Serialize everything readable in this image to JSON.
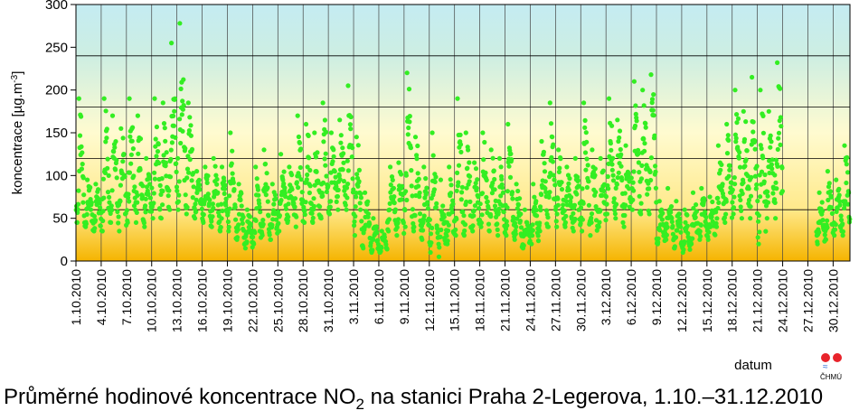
{
  "caption": {
    "prefix": "Průměrné hodinové koncentrace NO",
    "sub": "2",
    "suffix": " na stanici Praha 2-Legerova, 1.10.–31.12.2010"
  },
  "logo": {
    "text": "ČHMÚ"
  },
  "chart_data": {
    "type": "scatter",
    "title": "",
    "ylabel": "koncentrace [µg.m-3]",
    "xlabel": "datum",
    "ylim": [
      0,
      300
    ],
    "yticks": [
      0,
      50,
      100,
      150,
      200,
      250,
      300
    ],
    "gridlines_y": [
      0,
      60,
      120,
      180,
      240,
      300
    ],
    "grid": true,
    "xlim": [
      "1.10.2010",
      "31.12.2010"
    ],
    "xtick_labels": [
      "1.10.2010",
      "4.10.2010",
      "7.10.2010",
      "10.10.2010",
      "13.10.2010",
      "16.10.2010",
      "19.10.2010",
      "22.10.2010",
      "25.10.2010",
      "28.10.2010",
      "31.10.2010",
      "3.11.2010",
      "6.11.2010",
      "9.11.2010",
      "12.11.2010",
      "15.11.2010",
      "18.11.2010",
      "21.11.2010",
      "24.11.2010",
      "27.11.2010",
      "30.11.2010",
      "3.12.2010",
      "6.12.2010",
      "9.12.2010",
      "12.12.2010",
      "15.12.2010",
      "18.12.2010",
      "21.12.2010",
      "24.12.2010",
      "27.12.2010",
      "30.12.2010"
    ],
    "marker_color": "#33ee22",
    "background_gradient": [
      "#f5b400",
      "#ffe98a",
      "#fffbd0",
      "#cdeee2",
      "#c4ecf2"
    ],
    "series": [
      {
        "daily_profile": [
          {
            "date": "1.10.2010",
            "min": 45,
            "max": 190
          },
          {
            "date": "2.10.2010",
            "min": 40,
            "max": 95
          },
          {
            "date": "3.10.2010",
            "min": 35,
            "max": 90
          },
          {
            "date": "4.10.2010",
            "min": 35,
            "max": 190
          },
          {
            "date": "5.10.2010",
            "min": 45,
            "max": 170
          },
          {
            "date": "6.10.2010",
            "min": 35,
            "max": 155
          },
          {
            "date": "7.10.2010",
            "min": 45,
            "max": 190
          },
          {
            "date": "8.10.2010",
            "min": 45,
            "max": 170
          },
          {
            "date": "9.10.2010",
            "min": 40,
            "max": 120
          },
          {
            "date": "10.10.2010",
            "min": 50,
            "max": 190
          },
          {
            "date": "11.10.2010",
            "min": 50,
            "max": 185
          },
          {
            "date": "12.10.2010",
            "min": 60,
            "max": 255
          },
          {
            "date": "13.10.2010",
            "min": 60,
            "max": 278
          },
          {
            "date": "14.10.2010",
            "min": 55,
            "max": 185
          },
          {
            "date": "15.10.2010",
            "min": 50,
            "max": 105
          },
          {
            "date": "16.10.2010",
            "min": 45,
            "max": 110
          },
          {
            "date": "17.10.2010",
            "min": 40,
            "max": 120
          },
          {
            "date": "18.10.2010",
            "min": 35,
            "max": 110
          },
          {
            "date": "19.10.2010",
            "min": 35,
            "max": 150
          },
          {
            "date": "20.10.2010",
            "min": 25,
            "max": 90
          },
          {
            "date": "21.10.2010",
            "min": 15,
            "max": 60
          },
          {
            "date": "22.10.2010",
            "min": 20,
            "max": 110
          },
          {
            "date": "23.10.2010",
            "min": 30,
            "max": 130
          },
          {
            "date": "24.10.2010",
            "min": 25,
            "max": 90
          },
          {
            "date": "25.10.2010",
            "min": 35,
            "max": 125
          },
          {
            "date": "26.10.2010",
            "min": 45,
            "max": 110
          },
          {
            "date": "27.10.2010",
            "min": 40,
            "max": 170
          },
          {
            "date": "28.10.2010",
            "min": 45,
            "max": 160
          },
          {
            "date": "29.10.2010",
            "min": 45,
            "max": 150
          },
          {
            "date": "30.10.2010",
            "min": 50,
            "max": 185
          },
          {
            "date": "31.10.2010",
            "min": 55,
            "max": 150
          },
          {
            "date": "1.11.2010",
            "min": 60,
            "max": 165
          },
          {
            "date": "2.11.2010",
            "min": 60,
            "max": 205
          },
          {
            "date": "3.11.2010",
            "min": 30,
            "max": 145
          },
          {
            "date": "4.11.2010",
            "min": 15,
            "max": 80
          },
          {
            "date": "5.11.2010",
            "min": 10,
            "max": 50
          },
          {
            "date": "6.11.2010",
            "min": 10,
            "max": 35
          },
          {
            "date": "7.11.2010",
            "min": 35,
            "max": 110
          },
          {
            "date": "8.11.2010",
            "min": 30,
            "max": 115
          },
          {
            "date": "9.11.2010",
            "min": 40,
            "max": 220
          },
          {
            "date": "10.11.2010",
            "min": 35,
            "max": 145
          },
          {
            "date": "11.11.2010",
            "min": 25,
            "max": 110
          },
          {
            "date": "12.11.2010",
            "min": 10,
            "max": 150
          },
          {
            "date": "13.11.2010",
            "min": 5,
            "max": 95
          },
          {
            "date": "14.11.2010",
            "min": 20,
            "max": 110
          },
          {
            "date": "15.11.2010",
            "min": 30,
            "max": 190
          },
          {
            "date": "16.11.2010",
            "min": 30,
            "max": 150
          },
          {
            "date": "17.11.2010",
            "min": 35,
            "max": 115
          },
          {
            "date": "18.11.2010",
            "min": 40,
            "max": 150
          },
          {
            "date": "19.11.2010",
            "min": 35,
            "max": 130
          },
          {
            "date": "20.11.2010",
            "min": 30,
            "max": 120
          },
          {
            "date": "21.11.2010",
            "min": 30,
            "max": 160
          },
          {
            "date": "22.11.2010",
            "min": 25,
            "max": 90
          },
          {
            "date": "23.11.2010",
            "min": 15,
            "max": 60
          },
          {
            "date": "24.11.2010",
            "min": 20,
            "max": 90
          },
          {
            "date": "25.11.2010",
            "min": 35,
            "max": 140
          },
          {
            "date": "26.11.2010",
            "min": 40,
            "max": 185
          },
          {
            "date": "27.11.2010",
            "min": 40,
            "max": 130
          },
          {
            "date": "28.11.2010",
            "min": 40,
            "max": 110
          },
          {
            "date": "29.11.2010",
            "min": 35,
            "max": 120
          },
          {
            "date": "30.11.2010",
            "min": 35,
            "max": 185
          },
          {
            "date": "1.12.2010",
            "min": 30,
            "max": 130
          },
          {
            "date": "2.12.2010",
            "min": 40,
            "max": 120
          },
          {
            "date": "3.12.2010",
            "min": 55,
            "max": 190
          },
          {
            "date": "4.12.2010",
            "min": 50,
            "max": 165
          },
          {
            "date": "5.12.2010",
            "min": 40,
            "max": 135
          },
          {
            "date": "6.12.2010",
            "min": 60,
            "max": 210
          },
          {
            "date": "7.12.2010",
            "min": 55,
            "max": 200
          },
          {
            "date": "8.12.2010",
            "min": 55,
            "max": 218
          },
          {
            "date": "9.12.2010",
            "min": 20,
            "max": 70
          },
          {
            "date": "10.12.2010",
            "min": 25,
            "max": 85
          },
          {
            "date": "11.12.2010",
            "min": 15,
            "max": 70
          },
          {
            "date": "12.12.2010",
            "min": 10,
            "max": 60
          },
          {
            "date": "13.12.2010",
            "min": 20,
            "max": 80
          },
          {
            "date": "14.12.2010",
            "min": 25,
            "max": 85
          },
          {
            "date": "15.12.2010",
            "min": 25,
            "max": 75
          },
          {
            "date": "16.12.2010",
            "min": 40,
            "max": 135
          },
          {
            "date": "17.12.2010",
            "min": 45,
            "max": 160
          },
          {
            "date": "18.12.2010",
            "min": 55,
            "max": 200
          },
          {
            "date": "19.12.2010",
            "min": 50,
            "max": 175
          },
          {
            "date": "20.12.2010",
            "min": 50,
            "max": 215
          },
          {
            "date": "21.12.2010",
            "min": 20,
            "max": 200
          },
          {
            "date": "22.12.2010",
            "min": 50,
            "max": 175
          },
          {
            "date": "23.12.2010",
            "min": 50,
            "max": 232
          },
          {
            "date": "28.12.2010",
            "min": 20,
            "max": 80
          },
          {
            "date": "29.12.2010",
            "min": 25,
            "max": 105
          },
          {
            "date": "30.12.2010",
            "min": 30,
            "max": 95
          },
          {
            "date": "31.12.2010",
            "min": 30,
            "max": 135
          }
        ]
      }
    ]
  }
}
